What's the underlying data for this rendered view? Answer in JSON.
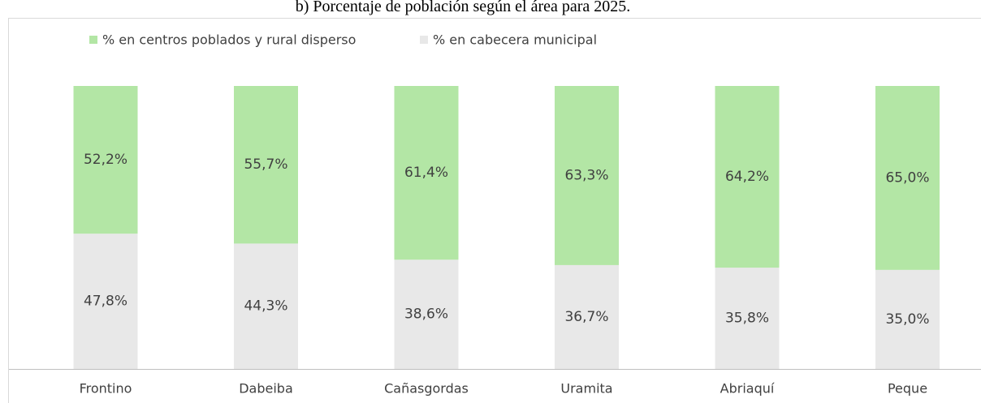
{
  "chart_data": {
    "type": "stacked_bar",
    "title": "b) Porcentaje de población según el área para 2025.",
    "categories": [
      "Frontino",
      "Dabeiba",
      "Cañasgordas",
      "Uramita",
      "Abriaquí",
      "Peque"
    ],
    "series": [
      {
        "name": "% en centros poblados y rural disperso",
        "color": "#b3e6a5",
        "values": [
          52.2,
          55.7,
          61.4,
          63.3,
          64.2,
          65.0
        ],
        "value_labels": [
          "52,2%",
          "55,7%",
          "61,4%",
          "63,3%",
          "64,2%",
          "65,0%"
        ]
      },
      {
        "name": "% en cabecera municipal",
        "color": "#e8e8e8",
        "values": [
          47.8,
          44.3,
          38.6,
          36.7,
          35.8,
          35.0
        ],
        "value_labels": [
          "47,8%",
          "44,3%",
          "38,6%",
          "36,7%",
          "35,8%",
          "35,0%"
        ]
      }
    ],
    "ylim": [
      0,
      100
    ],
    "legend": "top"
  }
}
